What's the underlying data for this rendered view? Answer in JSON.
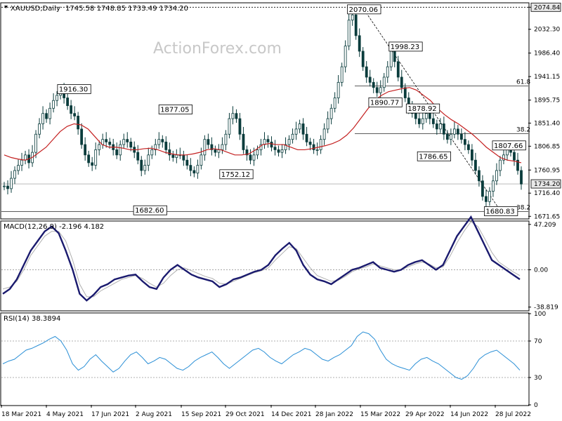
{
  "chart_data": [
    {
      "type": "candlestick",
      "symbol_header": "XAUUSD,Daily",
      "ohlc_header": "1745.58 1748.85 1733.49 1734.20",
      "watermark": "ActionForex.com",
      "ylim": [
        1668,
        2082
      ],
      "y_ticks": [
        "2074.84",
        "2032.30",
        "1986.40",
        "1941.15",
        "1895.75",
        "1851.40",
        "1806.85",
        "1760.95",
        "1716.40",
        "1671.65"
      ],
      "y_tick_values": [
        2074.84,
        2032.3,
        1986.4,
        1941.15,
        1895.75,
        1851.4,
        1806.85,
        1760.95,
        1716.4,
        1671.65
      ],
      "last_price": "1734.20",
      "top_price_box": "2074.84",
      "annotations": [
        {
          "text": "1916.30",
          "x": "2021-05-26",
          "y": 1916.3
        },
        {
          "text": "1877.05",
          "x": "2021-09-03",
          "y": 1877.05
        },
        {
          "text": "1752.12",
          "x": "2021-11-02",
          "y": 1752.12
        },
        {
          "text": "1682.60",
          "x": "2021-08-09",
          "y": 1682.6
        },
        {
          "text": "2070.06",
          "x": "2022-03-08",
          "y": 2070.06
        },
        {
          "text": "1998.23",
          "x": "2022-04-18",
          "y": 1998.23
        },
        {
          "text": "1890.77",
          "x": "2022-03-29",
          "y": 1890.77
        },
        {
          "text": "1878.92",
          "x": "2022-05-05",
          "y": 1878.92
        },
        {
          "text": "1786.65",
          "x": "2022-05-16",
          "y": 1786.65
        },
        {
          "text": "1807.66",
          "x": "2022-07-29",
          "y": 1807.66
        },
        {
          "text": "1680.83",
          "x": "2022-07-21",
          "y": 1680.83
        }
      ],
      "fib_levels": [
        {
          "label": "61.8",
          "value": 1923
        },
        {
          "label": "38.2",
          "value": 1831
        },
        {
          "label": "38.2",
          "value": 1681
        }
      ],
      "hlines": [
        1734.2,
        2074.84
      ],
      "x_labels": [
        "18 Mar 2021",
        "4 May 2021",
        "17 Jun 2021",
        "2 Aug 2021",
        "15 Sep 2021",
        "29 Oct 2021",
        "14 Dec 2021",
        "28 Jan 2022",
        "15 Mar 2022",
        "29 Apr 2022",
        "14 Jun 2022",
        "28 Jul 2022"
      ],
      "price_series": [
        1730,
        1725,
        1745,
        1760,
        1770,
        1780,
        1790,
        1775,
        1795,
        1830,
        1850,
        1870,
        1860,
        1880,
        1895,
        1905,
        1915,
        1900,
        1885,
        1870,
        1865,
        1840,
        1810,
        1790,
        1775,
        1770,
        1800,
        1810,
        1820,
        1815,
        1810,
        1800,
        1790,
        1810,
        1820,
        1815,
        1805,
        1795,
        1780,
        1760,
        1770,
        1790,
        1800,
        1810,
        1820,
        1815,
        1800,
        1790,
        1785,
        1790,
        1790,
        1780,
        1770,
        1760,
        1755,
        1770,
        1790,
        1820,
        1810,
        1800,
        1795,
        1800,
        1810,
        1830,
        1860,
        1870,
        1860,
        1830,
        1800,
        1790,
        1780,
        1790,
        1800,
        1810,
        1820,
        1815,
        1805,
        1800,
        1795,
        1800,
        1810,
        1820,
        1830,
        1840,
        1850,
        1830,
        1815,
        1810,
        1800,
        1800,
        1820,
        1840,
        1860,
        1880,
        1900,
        1930,
        1960,
        2000,
        2050,
        2060,
        2020,
        1990,
        1960,
        1940,
        1930,
        1920,
        1910,
        1920,
        1940,
        1960,
        1990,
        1970,
        1940,
        1920,
        1900,
        1880,
        1870,
        1860,
        1850,
        1860,
        1870,
        1860,
        1850,
        1840,
        1850,
        1830,
        1820,
        1830,
        1840,
        1830,
        1820,
        1810,
        1800,
        1780,
        1760,
        1740,
        1710,
        1700,
        1720,
        1740,
        1760,
        1780,
        1790,
        1800,
        1795,
        1780,
        1760,
        1734
      ],
      "ma_series": [
        1790,
        1785,
        1782,
        1780,
        1785,
        1795,
        1805,
        1820,
        1835,
        1845,
        1850,
        1848,
        1840,
        1825,
        1810,
        1805,
        1805,
        1803,
        1800,
        1800,
        1802,
        1803,
        1800,
        1795,
        1792,
        1790,
        1790,
        1792,
        1795,
        1800,
        1802,
        1800,
        1795,
        1790,
        1790,
        1792,
        1800,
        1810,
        1812,
        1810,
        1810,
        1805,
        1800,
        1800,
        1802,
        1805,
        1808,
        1812,
        1818,
        1828,
        1842,
        1860,
        1878,
        1895,
        1905,
        1912,
        1915,
        1918,
        1920,
        1915,
        1905,
        1895,
        1880,
        1868,
        1858,
        1850,
        1840,
        1830,
        1818,
        1805,
        1795,
        1785,
        1780,
        1778,
        1775
      ],
      "macd": {
        "label": "MACD(12,26,9) -2.196 4.182",
        "ylim": [
          -42,
          50
        ],
        "y_ticks": [
          "47.209",
          "0.00",
          "-38.819"
        ],
        "y_tick_values": [
          47.209,
          0,
          -38.819
        ],
        "macd_series": [
          -25,
          -20,
          -10,
          5,
          20,
          30,
          40,
          45,
          38,
          20,
          0,
          -25,
          -32,
          -26,
          -18,
          -15,
          -10,
          -8,
          -6,
          -5,
          -12,
          -18,
          -20,
          -8,
          0,
          5,
          0,
          -5,
          -8,
          -10,
          -12,
          -18,
          -15,
          -10,
          -8,
          -5,
          -2,
          0,
          5,
          15,
          22,
          28,
          20,
          5,
          -5,
          -10,
          -12,
          -15,
          -10,
          -5,
          0,
          2,
          5,
          8,
          2,
          0,
          -2,
          0,
          5,
          8,
          10,
          5,
          0,
          5,
          20,
          35,
          45,
          55,
          40,
          25,
          10,
          5,
          0,
          -5,
          -10
        ],
        "signal_series": [
          -20,
          -18,
          -12,
          0,
          15,
          25,
          35,
          40,
          40,
          30,
          10,
          -15,
          -28,
          -28,
          -22,
          -18,
          -14,
          -10,
          -8,
          -6,
          -9,
          -14,
          -18,
          -14,
          -6,
          0,
          2,
          -1,
          -4,
          -7,
          -9,
          -14,
          -15,
          -12,
          -9,
          -6,
          -3,
          -1,
          2,
          10,
          17,
          24,
          22,
          12,
          2,
          -6,
          -9,
          -12,
          -11,
          -7,
          -2,
          1,
          3,
          6,
          4,
          2,
          0,
          0,
          3,
          6,
          8,
          6,
          2,
          3,
          14,
          28,
          40,
          50,
          45,
          32,
          18,
          8,
          3,
          -2,
          -6
        ]
      },
      "rsi": {
        "label": "RSI(14) 38.3894",
        "ylim": [
          0,
          100
        ],
        "y_ticks": [
          "100",
          "70",
          "30",
          "0"
        ],
        "y_tick_values": [
          100,
          70,
          30,
          0
        ],
        "levels": [
          70,
          30
        ],
        "series": [
          45,
          48,
          50,
          55,
          60,
          62,
          65,
          68,
          72,
          75,
          70,
          60,
          45,
          38,
          42,
          50,
          55,
          48,
          42,
          36,
          40,
          48,
          55,
          58,
          52,
          45,
          48,
          52,
          50,
          45,
          40,
          38,
          42,
          48,
          52,
          55,
          58,
          52,
          45,
          40,
          45,
          50,
          55,
          60,
          62,
          58,
          52,
          48,
          45,
          50,
          55,
          58,
          62,
          60,
          55,
          50,
          48,
          52,
          55,
          60,
          65,
          75,
          80,
          78,
          72,
          60,
          50,
          45,
          42,
          40,
          38,
          45,
          50,
          52,
          48,
          45,
          40,
          35,
          30,
          28,
          32,
          40,
          50,
          55,
          58,
          60,
          55,
          50,
          45,
          38
        ]
      }
    }
  ]
}
